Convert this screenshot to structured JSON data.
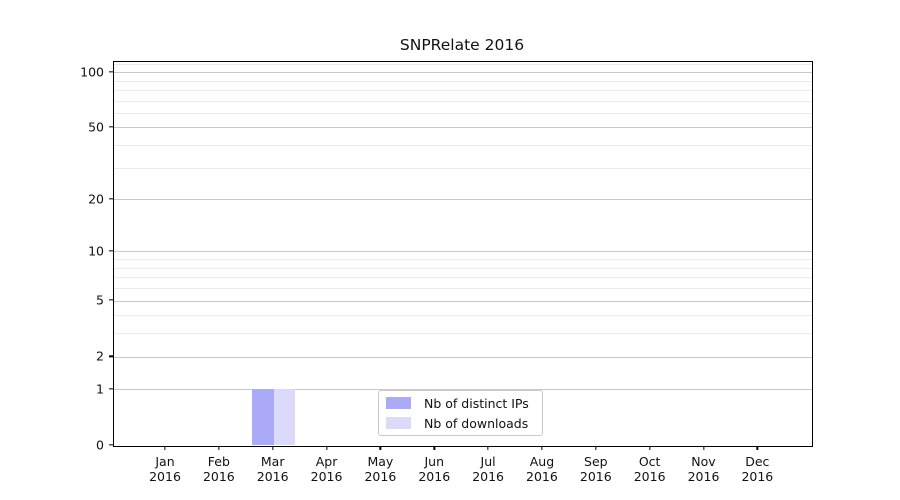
{
  "chart_data": {
    "type": "bar",
    "title": "SNPRelate 2016",
    "categories": [
      "Jan",
      "Feb",
      "Mar",
      "Apr",
      "May",
      "Jun",
      "Jul",
      "Aug",
      "Sep",
      "Oct",
      "Nov",
      "Dec"
    ],
    "category_year": "2016",
    "series": [
      {
        "name": "Nb of distinct IPs",
        "color": "#aaaaf6",
        "values": [
          0,
          0,
          1,
          0,
          0,
          0,
          0,
          0,
          0,
          0,
          0,
          0
        ]
      },
      {
        "name": "Nb of downloads",
        "color": "#dbdbf9",
        "values": [
          0,
          0,
          1,
          0,
          0,
          0,
          0,
          0,
          0,
          0,
          0,
          0
        ]
      }
    ],
    "xlabel": "",
    "ylabel": "",
    "y_scale": "log10(1+x)",
    "y_major_ticks": [
      0,
      1,
      2,
      5,
      10,
      20,
      50,
      100
    ],
    "y_minor_ticks": [
      3,
      4,
      6,
      7,
      8,
      9,
      30,
      40,
      60,
      70,
      80,
      90,
      110
    ],
    "ylim": [
      0,
      113
    ],
    "grid": "horizontal",
    "legend_position": "lower center-right inside plot",
    "colors": {
      "major_grid": "#c9c9c9",
      "minor_grid": "#ebebeb",
      "axis": "#000000",
      "text": "#111111",
      "background": "#ffffff"
    }
  }
}
